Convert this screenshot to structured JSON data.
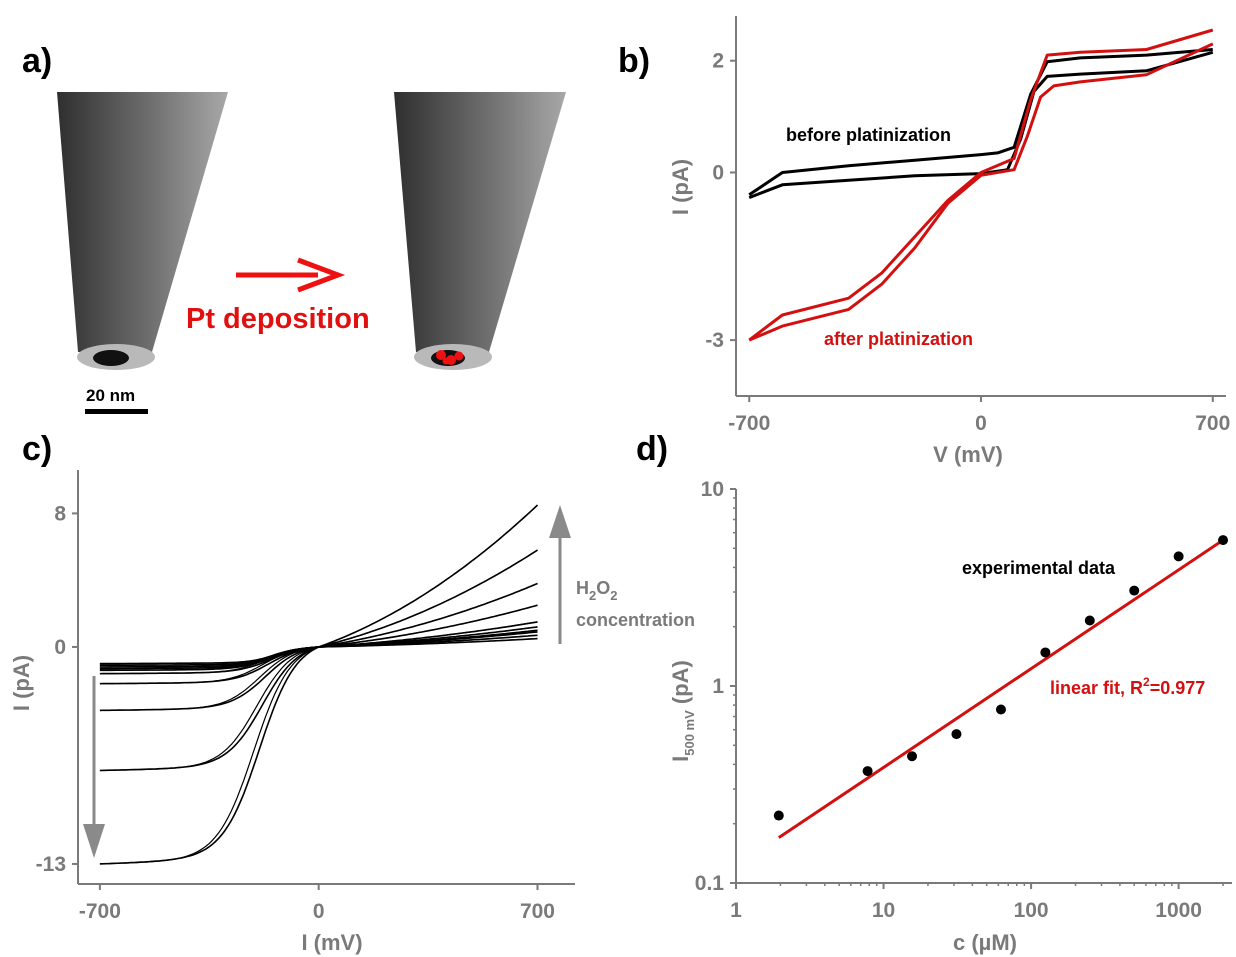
{
  "panels": {
    "a": {
      "letter": "a)",
      "arrow_label": "Pt deposition",
      "scale_bar_label": "20 nm",
      "colors": {
        "tip_dark": "#3a3a3a",
        "tip_light": "#9a9a9a",
        "orifice": "#111111",
        "platinum": "#ee1111",
        "arrow": "#ee1111"
      }
    },
    "b": {
      "letter": "b)"
    },
    "c": {
      "letter": "c)",
      "annotation_line1": "H",
      "annotation_sub1": "2",
      "annotation_mid": "O",
      "annotation_sub2": "2",
      "annotation_line2": "concentration"
    },
    "d": {
      "letter": "d)"
    }
  },
  "chart_data": [
    {
      "id": "b",
      "type": "line",
      "xlabel": "V (mV)",
      "ylabel": "I (pA)",
      "xlim": [
        -740,
        740
      ],
      "ylim": [
        -4.0,
        2.8
      ],
      "xticks": [
        -700,
        0,
        700
      ],
      "yticks": [
        -3,
        0,
        2
      ],
      "series": [
        {
          "name": "before platinization",
          "color": "#000000",
          "forward": {
            "x": [
              -700,
              -600,
              -400,
              -200,
              0,
              80,
              120,
              160,
              200,
              300,
              500,
              700
            ],
            "y": [
              -0.45,
              -0.22,
              -0.14,
              -0.06,
              -0.02,
              0.05,
              0.6,
              1.45,
              1.72,
              1.76,
              1.82,
              2.15
            ]
          },
          "reverse": {
            "x": [
              700,
              500,
              300,
              200,
              150,
              100,
              50,
              0,
              -200,
              -400,
              -600,
              -700
            ],
            "y": [
              2.2,
              2.1,
              2.05,
              1.98,
              1.4,
              0.45,
              0.35,
              0.32,
              0.22,
              0.12,
              0.0,
              -0.4
            ]
          }
        },
        {
          "name": "after platinization",
          "color": "#d31010",
          "forward": {
            "x": [
              -700,
              -600,
              -400,
              -300,
              -200,
              -100,
              0,
              100,
              140,
              180,
              220,
              300,
              500,
              700
            ],
            "y": [
              -3.0,
              -2.75,
              -2.45,
              -2.0,
              -1.35,
              -0.55,
              -0.05,
              0.05,
              0.65,
              1.35,
              1.55,
              1.62,
              1.75,
              2.3
            ]
          },
          "reverse": {
            "x": [
              700,
              500,
              300,
              200,
              150,
              100,
              0,
              -100,
              -200,
              -300,
              -400,
              -600,
              -700
            ],
            "y": [
              2.55,
              2.2,
              2.15,
              2.1,
              1.3,
              0.25,
              0.0,
              -0.5,
              -1.15,
              -1.8,
              -2.25,
              -2.55,
              -3.0
            ]
          }
        }
      ]
    },
    {
      "id": "c",
      "type": "line",
      "xlabel": "I (mV)",
      "ylabel": "I (pA)",
      "xlim": [
        -770,
        820
      ],
      "ylim": [
        -14.2,
        10.6
      ],
      "xticks": [
        -700,
        0,
        700
      ],
      "yticks": [
        -13,
        0,
        8
      ],
      "series": [
        {
          "limit_neg": -1.0,
          "limit_pos": 0.5,
          "half": -120
        },
        {
          "limit_neg": -1.1,
          "limit_pos": 0.7,
          "half": -130
        },
        {
          "limit_neg": -1.2,
          "limit_pos": 0.9,
          "half": -140
        },
        {
          "limit_neg": -1.3,
          "limit_pos": 1.0,
          "half": -140
        },
        {
          "limit_neg": -1.4,
          "limit_pos": 1.2,
          "half": -150
        },
        {
          "limit_neg": -1.6,
          "limit_pos": 1.5,
          "half": -150
        },
        {
          "limit_neg": -2.2,
          "limit_pos": 2.5,
          "half": -160
        },
        {
          "limit_neg": -3.8,
          "limit_pos": 3.8,
          "half": -170
        },
        {
          "limit_neg": -7.4,
          "limit_pos": 5.8,
          "half": -180
        },
        {
          "limit_neg": -13.0,
          "limit_pos": 8.5,
          "half": -190
        }
      ]
    },
    {
      "id": "d",
      "type": "scatter",
      "xlabel": "c (µM)",
      "ylabel_main": "I",
      "ylabel_sub": "500 mV",
      "ylabel_unit": " (pA)",
      "xscale": "log",
      "yscale": "log",
      "xlim": [
        1,
        2300
      ],
      "ylim": [
        0.1,
        10
      ],
      "xticks": [
        1,
        10,
        100,
        1000
      ],
      "yticks": [
        0.1,
        1,
        10
      ],
      "points_label": "experimental data",
      "fit_label_prefix": "linear fit, R",
      "fit_label_sup": "2",
      "fit_label_suffix": "=0.977",
      "point_color": "#000000",
      "fit_color": "#d31010",
      "x": [
        1.95,
        7.8,
        15.6,
        31.2,
        62.5,
        125,
        250,
        500,
        1000,
        2000
      ],
      "y": [
        0.22,
        0.37,
        0.44,
        0.57,
        0.76,
        1.48,
        2.15,
        3.05,
        4.55,
        5.5
      ],
      "fit": {
        "x": [
          1.95,
          2000
        ],
        "y": [
          0.17,
          5.5
        ]
      }
    }
  ]
}
